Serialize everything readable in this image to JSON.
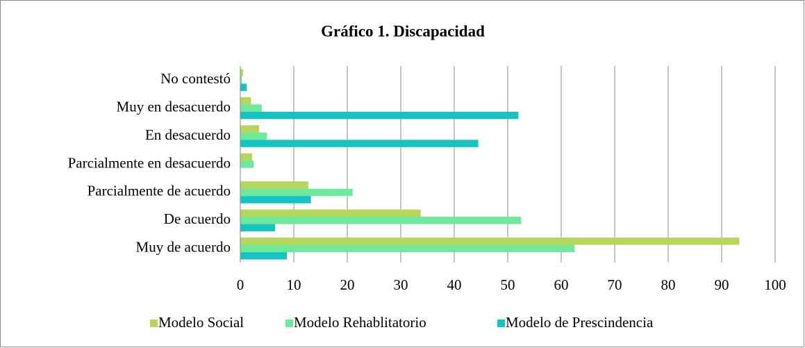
{
  "chart_data": {
    "type": "bar",
    "orientation": "horizontal",
    "title": "Gráfico 1. Discapacidad",
    "categories": [
      "No contestó",
      "Muy en desacuerdo",
      "En desacuerdo",
      "Parcialmente en desacuerdo",
      "Parcialmente de acuerdo",
      "De acuerdo",
      "Muy de acuerdo"
    ],
    "series": [
      {
        "name": "Modelo Social",
        "color": "#b4d65a",
        "values": [
          0.5,
          2,
          3.5,
          2.2,
          12.7,
          33.7,
          93.3
        ]
      },
      {
        "name": "Modelo Rehablitatorio",
        "color": "#6ee89a",
        "values": [
          0.3,
          4,
          5,
          2.5,
          21,
          52.5,
          62.5
        ]
      },
      {
        "name": "Modelo de Prescindencia",
        "color": "#17c3c0",
        "values": [
          1.2,
          52,
          44.5,
          0,
          13.2,
          6.5,
          8.7
        ]
      }
    ],
    "xlim": [
      0,
      100
    ],
    "xticks": [
      0,
      10,
      20,
      30,
      40,
      50,
      60,
      70,
      80,
      90,
      100
    ],
    "grid": true,
    "legend": "bottom"
  }
}
